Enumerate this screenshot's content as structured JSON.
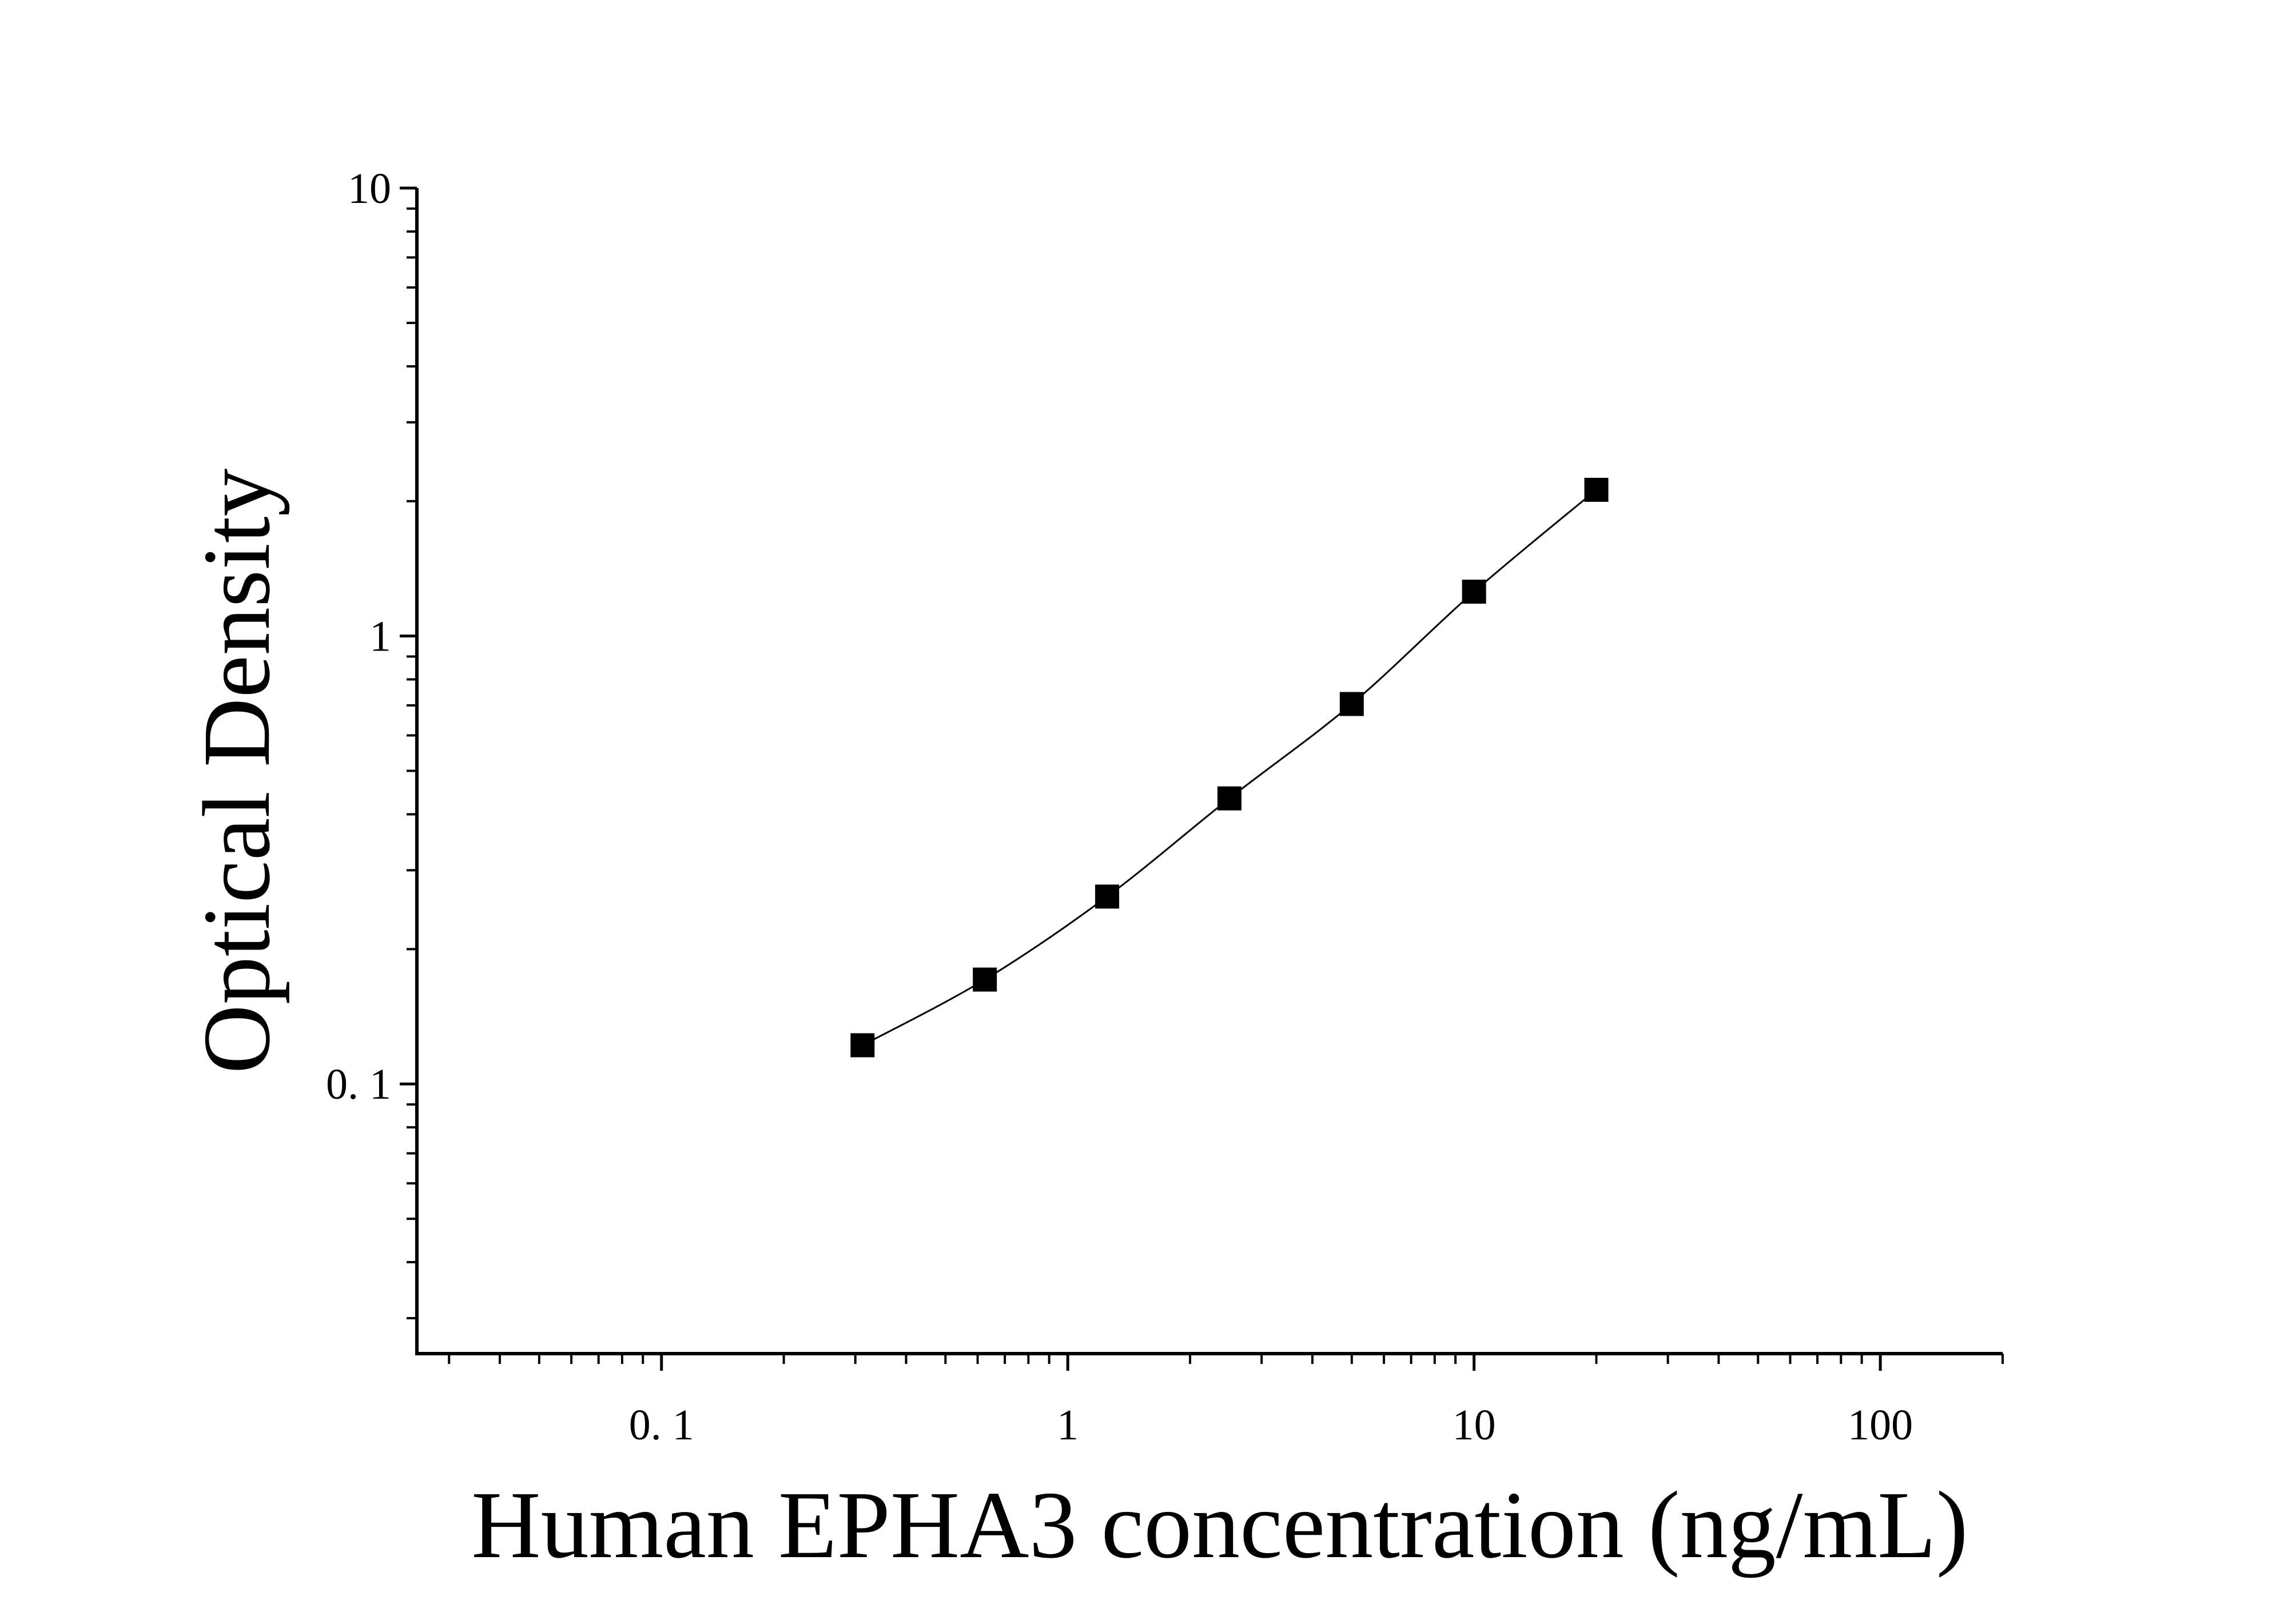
{
  "chart_data": {
    "type": "scatter",
    "x_label": "Human EPHA3 concentration (ng/mL)",
    "y_label": "Optical Density",
    "x": [
      0.3125,
      0.625,
      1.25,
      2.5,
      5,
      10,
      20
    ],
    "values": [
      0.122,
      0.171,
      0.262,
      0.434,
      0.705,
      1.256,
      2.12
    ],
    "color": "#000000",
    "fit_line": true,
    "xscale": "log",
    "yscale": "log",
    "minor_ticks": true,
    "xlim": [
      0.025,
      200
    ],
    "ylim": [
      0.025,
      10
    ],
    "xticks": [
      {
        "value": 0.1,
        "label": "0. 1"
      },
      1,
      10,
      100
    ],
    "yticks": [
      {
        "value": 0.1,
        "label": "0. 1"
      },
      1,
      10
    ]
  }
}
